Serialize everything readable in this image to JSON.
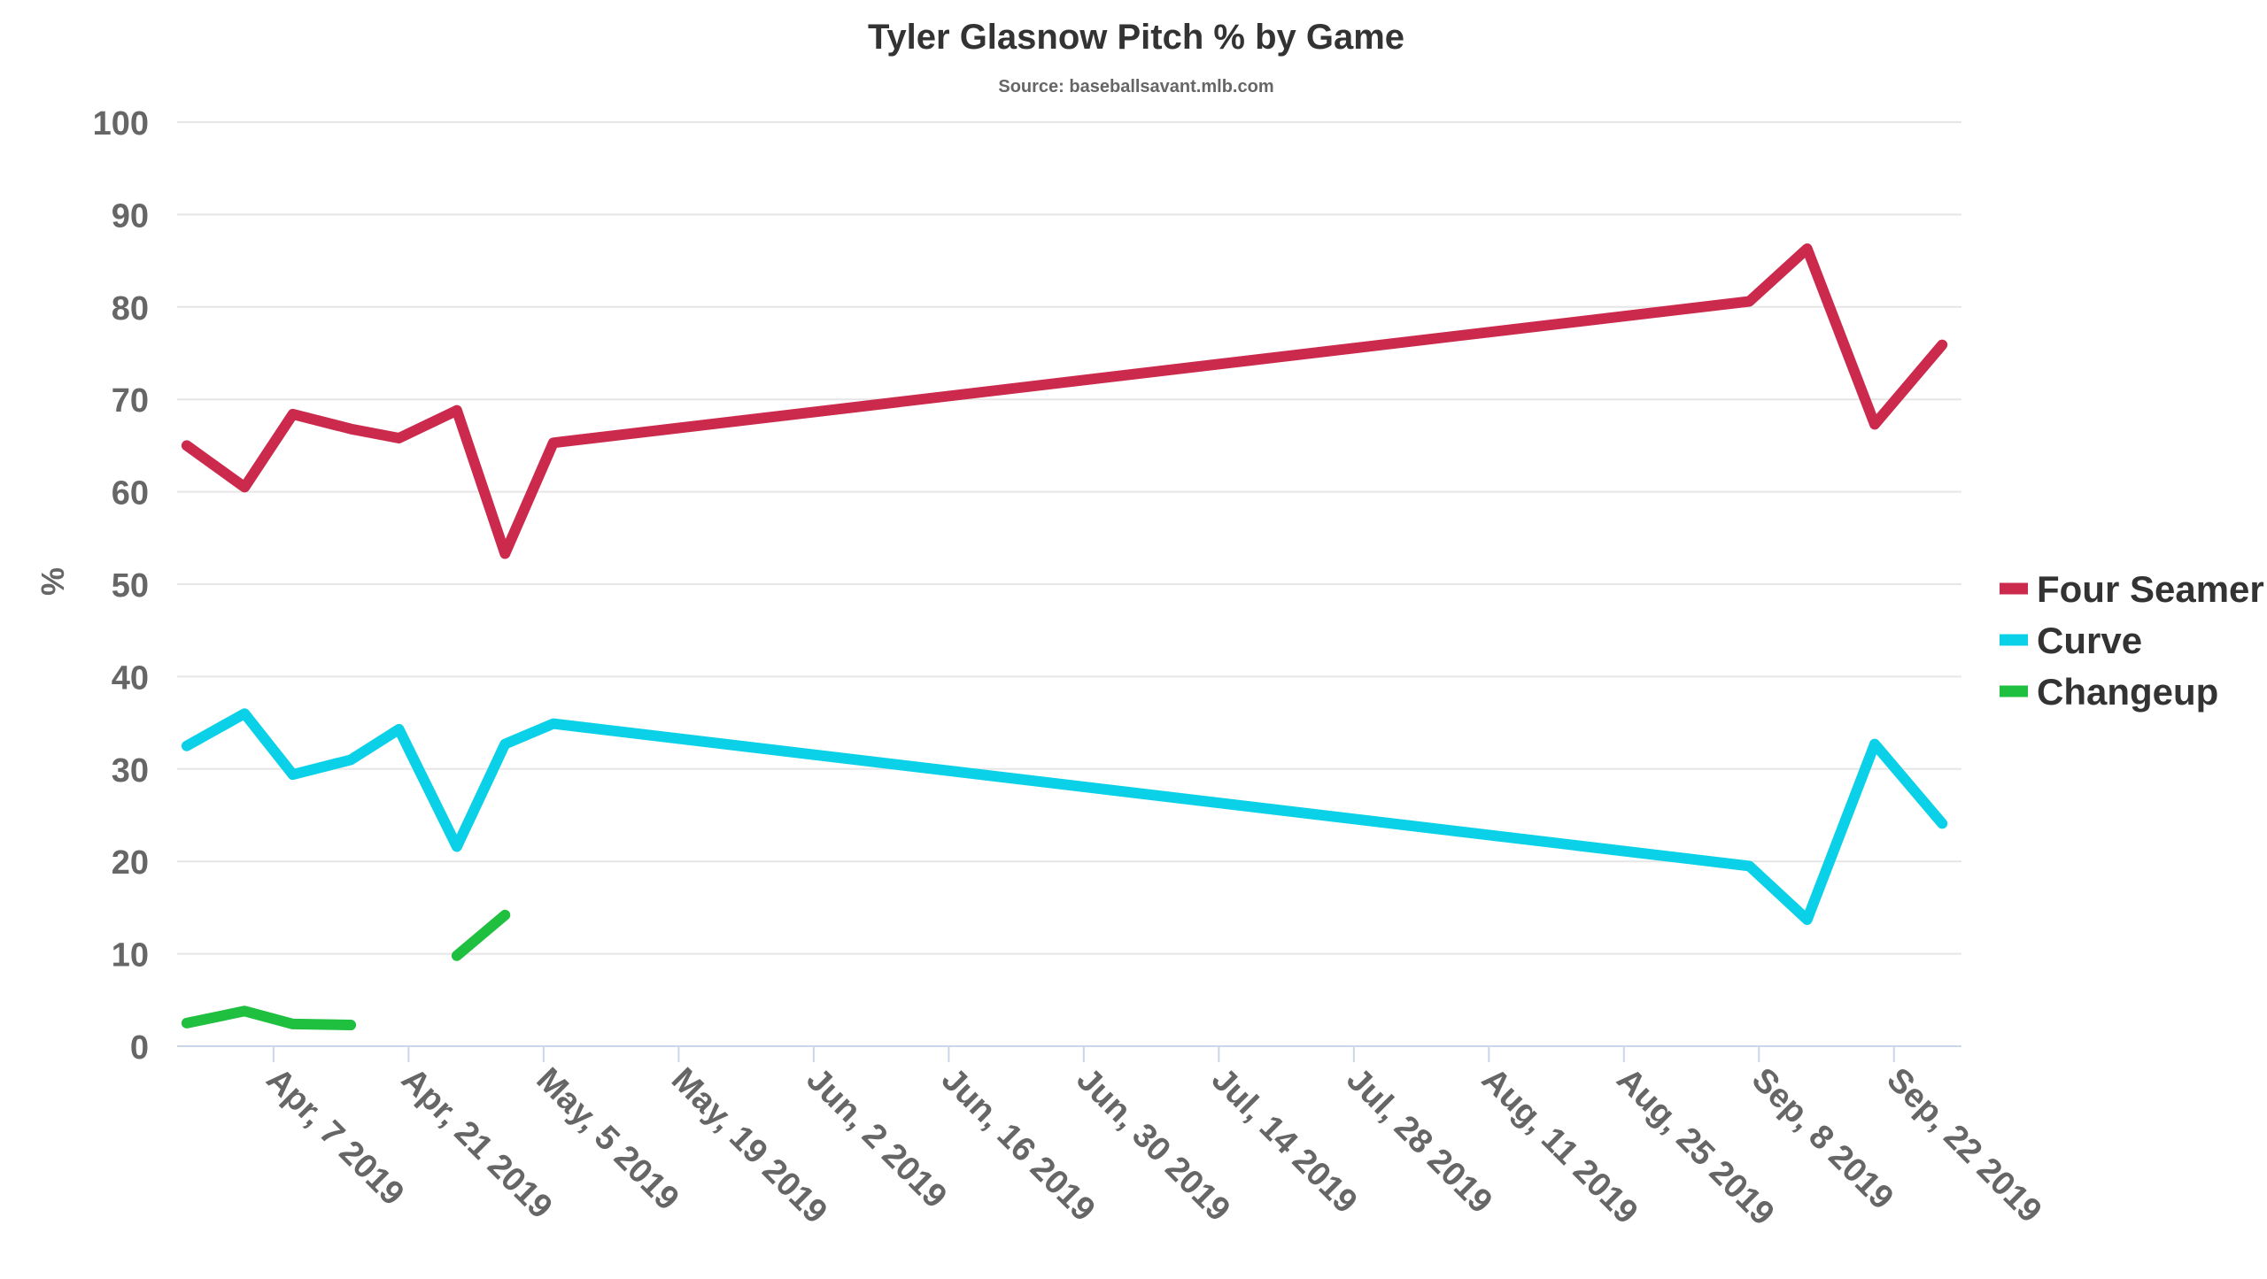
{
  "chart_data": {
    "type": "line",
    "title": "Tyler Glasnow Pitch % by Game",
    "subtitle": "Source: baseballsavant.mlb.com",
    "ylabel": "%",
    "xlabel": "",
    "ylim": [
      0,
      100
    ],
    "yticks": [
      0,
      10,
      20,
      30,
      40,
      50,
      60,
      70,
      80,
      90,
      100
    ],
    "xlim": [
      "2019-03-28",
      "2019-09-29"
    ],
    "xticks": [
      {
        "date": "2019-04-07",
        "label": "Apr, 7 2019"
      },
      {
        "date": "2019-04-21",
        "label": "Apr, 21 2019"
      },
      {
        "date": "2019-05-05",
        "label": "May, 5 2019"
      },
      {
        "date": "2019-05-19",
        "label": "May, 19 2019"
      },
      {
        "date": "2019-06-02",
        "label": "Jun, 2 2019"
      },
      {
        "date": "2019-06-16",
        "label": "Jun, 16 2019"
      },
      {
        "date": "2019-06-30",
        "label": "Jun, 30 2019"
      },
      {
        "date": "2019-07-14",
        "label": "Jul, 14 2019"
      },
      {
        "date": "2019-07-28",
        "label": "Jul, 28 2019"
      },
      {
        "date": "2019-08-11",
        "label": "Aug, 11 2019"
      },
      {
        "date": "2019-08-25",
        "label": "Aug, 25 2019"
      },
      {
        "date": "2019-09-08",
        "label": "Sep, 8 2019"
      },
      {
        "date": "2019-09-22",
        "label": "Sep, 22 2019"
      }
    ],
    "grid": true,
    "legend_position": "right",
    "series": [
      {
        "name": "Four Seamer",
        "color": "#cc2a4d",
        "points": [
          {
            "x": "2019-03-29",
            "y": 65.0
          },
          {
            "x": "2019-04-04",
            "y": 60.5
          },
          {
            "x": "2019-04-09",
            "y": 68.4
          },
          {
            "x": "2019-04-15",
            "y": 66.8
          },
          {
            "x": "2019-04-20",
            "y": 65.8
          },
          {
            "x": "2019-04-26",
            "y": 68.8
          },
          {
            "x": "2019-05-01",
            "y": 53.3
          },
          {
            "x": "2019-05-06",
            "y": 65.3
          },
          {
            "x": "2019-09-07",
            "y": 80.6
          },
          {
            "x": "2019-09-13",
            "y": 86.3
          },
          {
            "x": "2019-09-20",
            "y": 67.3
          },
          {
            "x": "2019-09-27",
            "y": 75.9
          }
        ]
      },
      {
        "name": "Curve",
        "color": "#0bd1e8",
        "points": [
          {
            "x": "2019-03-29",
            "y": 32.5
          },
          {
            "x": "2019-04-04",
            "y": 36.0
          },
          {
            "x": "2019-04-09",
            "y": 29.4
          },
          {
            "x": "2019-04-15",
            "y": 31.0
          },
          {
            "x": "2019-04-20",
            "y": 34.3
          },
          {
            "x": "2019-04-26",
            "y": 21.6
          },
          {
            "x": "2019-05-01",
            "y": 32.7
          },
          {
            "x": "2019-05-06",
            "y": 34.9
          },
          {
            "x": "2019-09-07",
            "y": 19.5
          },
          {
            "x": "2019-09-13",
            "y": 13.7
          },
          {
            "x": "2019-09-20",
            "y": 32.7
          },
          {
            "x": "2019-09-27",
            "y": 24.1
          }
        ]
      },
      {
        "name": "Changeup",
        "color": "#1fbf3f",
        "points": [
          {
            "x": "2019-03-29",
            "y": 2.5
          },
          {
            "x": "2019-04-04",
            "y": 3.8
          },
          {
            "x": "2019-04-09",
            "y": 2.4
          },
          {
            "x": "2019-04-15",
            "y": 2.3
          },
          {
            "x": "2019-04-20",
            "y": null
          },
          {
            "x": "2019-04-26",
            "y": 9.8
          },
          {
            "x": "2019-05-01",
            "y": 14.2
          }
        ]
      }
    ]
  }
}
